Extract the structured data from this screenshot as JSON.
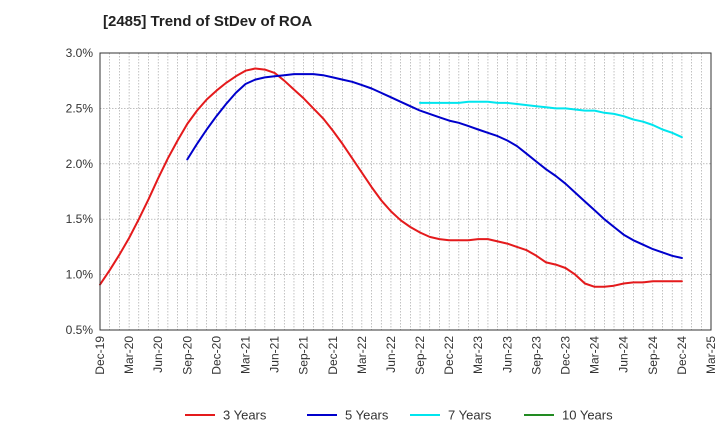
{
  "chart_data": {
    "type": "line",
    "title": "[2485]  Trend of StDev of ROA",
    "xlabel": "",
    "ylabel": "",
    "ylim": [
      0.005,
      0.03
    ],
    "x_tick_labels": [
      "Dec-19",
      "Mar-20",
      "Jun-20",
      "Sep-20",
      "Dec-20",
      "Mar-21",
      "Jun-21",
      "Sep-21",
      "Dec-21",
      "Mar-22",
      "Jun-22",
      "Sep-22",
      "Dec-22",
      "Mar-23",
      "Jun-23",
      "Sep-23",
      "Dec-23",
      "Mar-24",
      "Jun-24",
      "Sep-24",
      "Dec-24",
      "Mar-25"
    ],
    "y_ticks": [
      0.005,
      0.01,
      0.015,
      0.02,
      0.025,
      0.03
    ],
    "y_tick_labels": [
      "0.5%",
      "1.0%",
      "1.5%",
      "2.0%",
      "2.5%",
      "3.0%"
    ],
    "grid": true,
    "legend_position": "bottom",
    "series": [
      {
        "name": "3 Years",
        "color": "#e41a1c",
        "x": [
          "2019-12",
          "2020-01",
          "2020-02",
          "2020-03",
          "2020-04",
          "2020-05",
          "2020-06",
          "2020-07",
          "2020-08",
          "2020-09",
          "2020-10",
          "2020-11",
          "2020-12",
          "2021-01",
          "2021-02",
          "2021-03",
          "2021-04",
          "2021-05",
          "2021-06",
          "2021-07",
          "2021-08",
          "2021-09",
          "2021-10",
          "2021-11",
          "2021-12",
          "2022-01",
          "2022-02",
          "2022-03",
          "2022-04",
          "2022-05",
          "2022-06",
          "2022-07",
          "2022-08",
          "2022-09",
          "2022-10",
          "2022-11",
          "2022-12",
          "2023-01",
          "2023-02",
          "2023-03",
          "2023-04",
          "2023-05",
          "2023-06",
          "2023-07",
          "2023-08",
          "2023-09",
          "2023-10",
          "2023-11",
          "2023-12",
          "2024-01",
          "2024-02",
          "2024-03",
          "2024-04",
          "2024-05",
          "2024-06",
          "2024-07",
          "2024-08",
          "2024-09",
          "2024-10",
          "2024-11",
          "2024-12"
        ],
        "values": [
          0.0091,
          0.0104,
          0.0118,
          0.0133,
          0.015,
          0.0168,
          0.0187,
          0.0205,
          0.0221,
          0.0236,
          0.0248,
          0.0258,
          0.0266,
          0.0273,
          0.0279,
          0.0284,
          0.0286,
          0.0285,
          0.0282,
          0.0275,
          0.0267,
          0.0259,
          0.025,
          0.0241,
          0.023,
          0.0218,
          0.0205,
          0.0192,
          0.0179,
          0.0167,
          0.0157,
          0.0149,
          0.0143,
          0.0138,
          0.0134,
          0.0132,
          0.0131,
          0.0131,
          0.0131,
          0.0132,
          0.0132,
          0.013,
          0.0128,
          0.0125,
          0.0122,
          0.0117,
          0.0111,
          0.0109,
          0.0106,
          0.01,
          0.0092,
          0.0089,
          0.0089,
          0.009,
          0.0092,
          0.0093,
          0.0093,
          0.0094,
          0.0094,
          0.0094,
          0.0094
        ]
      },
      {
        "name": "5 Years",
        "color": "#0000cc",
        "x": [
          "2020-09",
          "2020-10",
          "2020-11",
          "2020-12",
          "2021-01",
          "2021-02",
          "2021-03",
          "2021-04",
          "2021-05",
          "2021-06",
          "2021-07",
          "2021-08",
          "2021-09",
          "2021-10",
          "2021-11",
          "2021-12",
          "2022-01",
          "2022-02",
          "2022-03",
          "2022-04",
          "2022-05",
          "2022-06",
          "2022-07",
          "2022-08",
          "2022-09",
          "2022-10",
          "2022-11",
          "2022-12",
          "2023-01",
          "2023-02",
          "2023-03",
          "2023-04",
          "2023-05",
          "2023-06",
          "2023-07",
          "2023-08",
          "2023-09",
          "2023-10",
          "2023-11",
          "2023-12",
          "2024-01",
          "2024-02",
          "2024-03",
          "2024-04",
          "2024-05",
          "2024-06",
          "2024-07",
          "2024-08",
          "2024-09",
          "2024-10",
          "2024-11",
          "2024-12"
        ],
        "values": [
          0.0204,
          0.0218,
          0.0231,
          0.0243,
          0.0254,
          0.0264,
          0.0272,
          0.0276,
          0.0278,
          0.0279,
          0.028,
          0.0281,
          0.0281,
          0.0281,
          0.028,
          0.0278,
          0.0276,
          0.0274,
          0.0271,
          0.0268,
          0.0264,
          0.026,
          0.0256,
          0.0252,
          0.0248,
          0.0245,
          0.0242,
          0.0239,
          0.0237,
          0.0234,
          0.0231,
          0.0228,
          0.0225,
          0.0221,
          0.0216,
          0.0209,
          0.0202,
          0.0195,
          0.0189,
          0.0182,
          0.0174,
          0.0166,
          0.0158,
          0.015,
          0.0143,
          0.0136,
          0.0131,
          0.0127,
          0.0123,
          0.012,
          0.0117,
          0.0115
        ]
      },
      {
        "name": "7 Years",
        "color": "#00e5ee",
        "x": [
          "2022-09",
          "2022-10",
          "2022-11",
          "2022-12",
          "2023-01",
          "2023-02",
          "2023-03",
          "2023-04",
          "2023-05",
          "2023-06",
          "2023-07",
          "2023-08",
          "2023-09",
          "2023-10",
          "2023-11",
          "2023-12",
          "2024-01",
          "2024-02",
          "2024-03",
          "2024-04",
          "2024-05",
          "2024-06",
          "2024-07",
          "2024-08",
          "2024-09",
          "2024-10",
          "2024-11",
          "2024-12"
        ],
        "values": [
          0.0255,
          0.0255,
          0.0255,
          0.0255,
          0.0255,
          0.0256,
          0.0256,
          0.0256,
          0.0255,
          0.0255,
          0.0254,
          0.0253,
          0.0252,
          0.0251,
          0.025,
          0.025,
          0.0249,
          0.0248,
          0.0248,
          0.0246,
          0.0245,
          0.0243,
          0.024,
          0.0238,
          0.0235,
          0.0231,
          0.0228,
          0.0224
        ]
      },
      {
        "name": "10 Years",
        "color": "#228b22",
        "x": [],
        "values": []
      }
    ]
  }
}
